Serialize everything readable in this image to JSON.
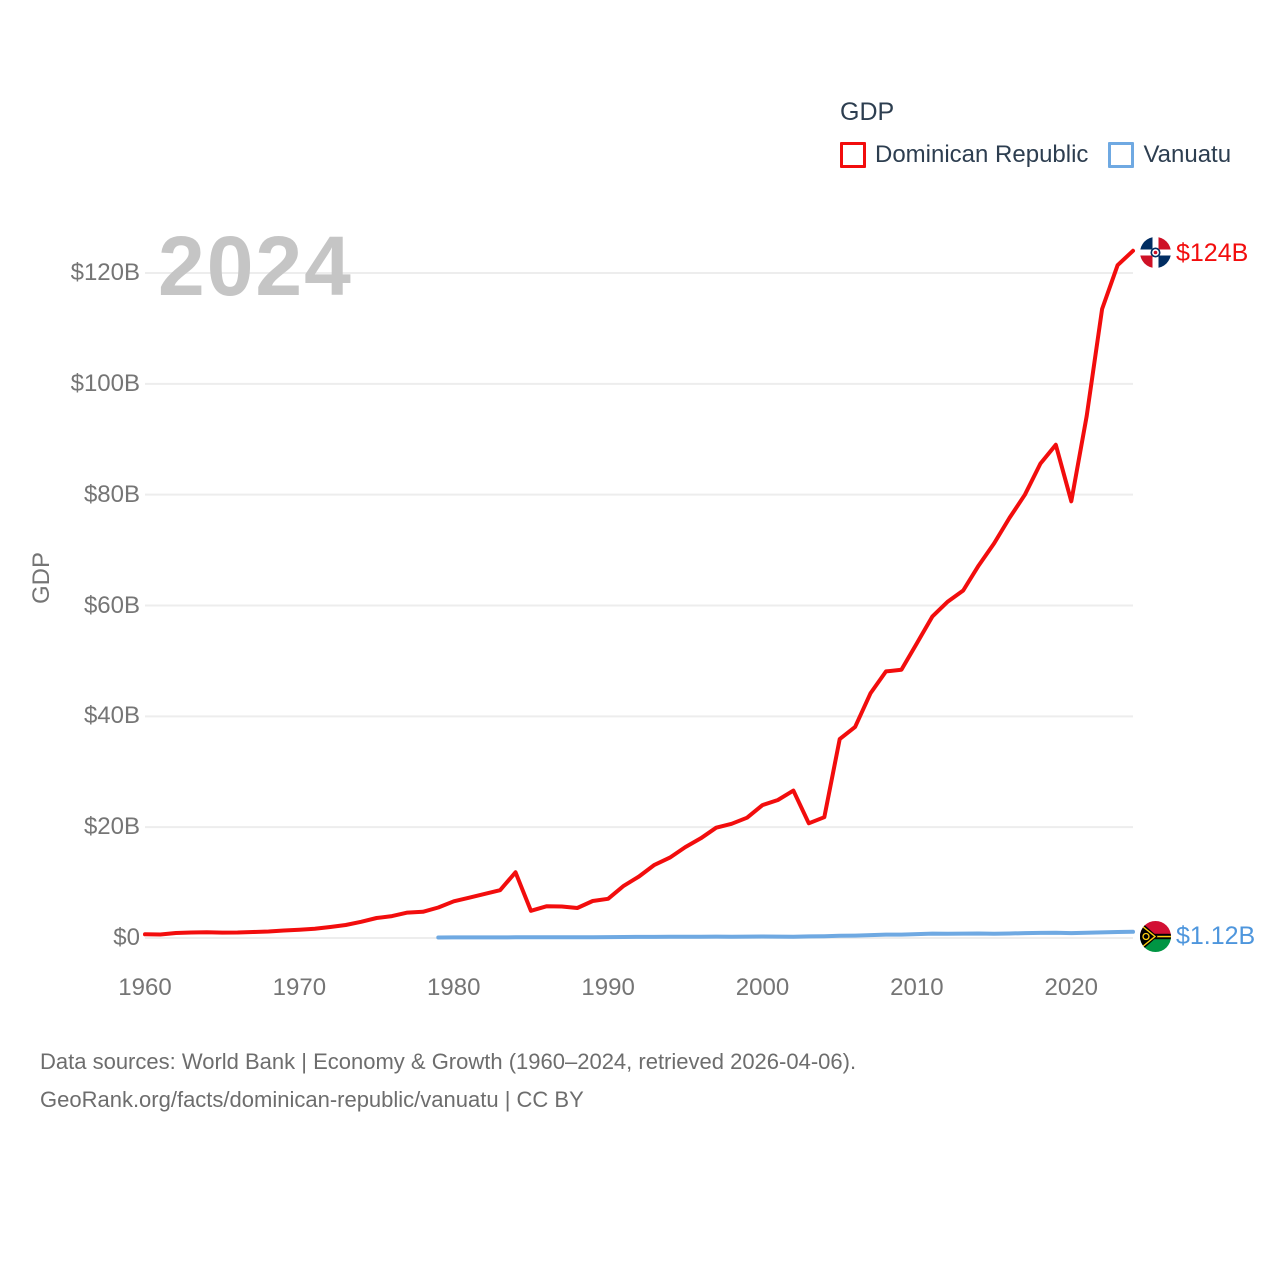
{
  "legend": {
    "title": "GDP"
  },
  "watermark": "2024",
  "axes": {
    "y_title": "GDP"
  },
  "chart_data": {
    "type": "line",
    "title": "GDP",
    "xlabel": "",
    "ylabel": "GDP",
    "xlim": [
      1960,
      2024
    ],
    "ylim": [
      0,
      124
    ],
    "grid": true,
    "legend_position": "top-right",
    "watermark": "2024",
    "y_ticks": [
      {
        "value": 0,
        "label": "$0"
      },
      {
        "value": 20,
        "label": "$20B"
      },
      {
        "value": 40,
        "label": "$40B"
      },
      {
        "value": 60,
        "label": "$60B"
      },
      {
        "value": 80,
        "label": "$80B"
      },
      {
        "value": 100,
        "label": "$100B"
      },
      {
        "value": 120,
        "label": "$120B"
      }
    ],
    "x_ticks": [
      {
        "value": 1960,
        "label": "1960"
      },
      {
        "value": 1970,
        "label": "1970"
      },
      {
        "value": 1980,
        "label": "1980"
      },
      {
        "value": 1990,
        "label": "1990"
      },
      {
        "value": 2000,
        "label": "2000"
      },
      {
        "value": 2010,
        "label": "2010"
      },
      {
        "value": 2020,
        "label": "2020"
      }
    ],
    "series": [
      {
        "name": "Dominican Republic",
        "color": "#f20d0d",
        "label_color": "#f20d0d",
        "end_label": "$124B",
        "flag_icon": "dominican-republic-flag",
        "unit": "current US$ billions",
        "start_year": 1960,
        "values": [
          0.67,
          0.64,
          0.9,
          1.0,
          1.05,
          0.98,
          1.0,
          1.08,
          1.18,
          1.35,
          1.49,
          1.67,
          1.99,
          2.35,
          2.93,
          3.6,
          3.95,
          4.59,
          4.73,
          5.5,
          6.63,
          7.27,
          7.96,
          8.62,
          11.85,
          4.9,
          5.72,
          5.68,
          5.42,
          6.67,
          7.07,
          9.4,
          11.1,
          13.2,
          14.5,
          16.4,
          18.0,
          19.9,
          20.6,
          21.7,
          23.99,
          24.9,
          26.6,
          20.7,
          21.8,
          35.9,
          38.1,
          44.2,
          48.1,
          48.4,
          53.2,
          58.0,
          60.7,
          62.7,
          67.2,
          71.2,
          75.8,
          80.0,
          85.6,
          89.0,
          78.8,
          94.2,
          113.5,
          121.4,
          124.0
        ]
      },
      {
        "name": "Vanuatu",
        "color": "#6fa9e2",
        "label_color": "#4e96dd",
        "end_label": "$1.12B",
        "flag_icon": "vanuatu-flag",
        "unit": "current US$ billions",
        "start_year": 1979,
        "values": [
          0.09,
          0.11,
          0.11,
          0.11,
          0.11,
          0.13,
          0.13,
          0.12,
          0.13,
          0.14,
          0.15,
          0.16,
          0.18,
          0.19,
          0.19,
          0.21,
          0.23,
          0.24,
          0.25,
          0.24,
          0.25,
          0.27,
          0.25,
          0.24,
          0.28,
          0.33,
          0.39,
          0.44,
          0.53,
          0.61,
          0.61,
          0.7,
          0.79,
          0.78,
          0.8,
          0.81,
          0.76,
          0.82,
          0.88,
          0.92,
          0.93,
          0.89,
          0.95,
          1.01,
          1.08,
          1.12
        ]
      }
    ]
  },
  "footer": {
    "line1": "Data sources: World Bank | Economy & Growth (1960–2024, retrieved 2026-04-06).",
    "line2": "GeoRank.org/facts/dominican-republic/vanuatu | CC BY"
  }
}
